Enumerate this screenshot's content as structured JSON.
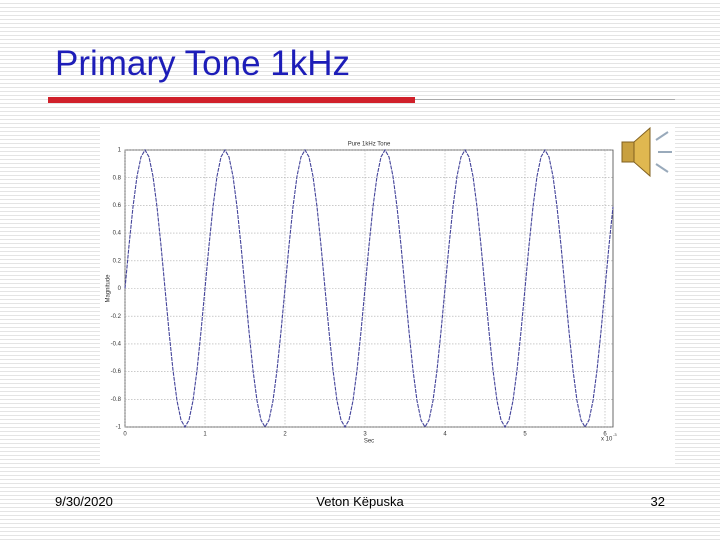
{
  "slide": {
    "title": "Primary Tone 1kHz",
    "footer": {
      "date": "9/30/2020",
      "author": "Veton Këpuska",
      "page": "32"
    }
  },
  "chart_data": {
    "type": "line",
    "title": "Pure 1kHz Tone",
    "xlabel": "Sec",
    "ylabel": "Magnitude",
    "x_scale_label": "x 10",
    "x_scale_exponent": "-3",
    "x": [
      0,
      0.05,
      0.1,
      0.15,
      0.2,
      0.25,
      0.3,
      0.35,
      0.4,
      0.45,
      0.5,
      0.55,
      0.6,
      0.65,
      0.7,
      0.75,
      0.8,
      0.85,
      0.9,
      0.95,
      1,
      1.05,
      1.1,
      1.15,
      1.2,
      1.25,
      1.3,
      1.35,
      1.4,
      1.45,
      1.5,
      1.55,
      1.6,
      1.65,
      1.7,
      1.75,
      1.8,
      1.85,
      1.9,
      1.95,
      2,
      2.05,
      2.1,
      2.15,
      2.2,
      2.25,
      2.3,
      2.35,
      2.4,
      2.45,
      2.5,
      2.55,
      2.6,
      2.65,
      2.7,
      2.75,
      2.8,
      2.85,
      2.9,
      2.95,
      3,
      3.05,
      3.1,
      3.15,
      3.2,
      3.25,
      3.3,
      3.35,
      3.4,
      3.45,
      3.5,
      3.55,
      3.6,
      3.65,
      3.7,
      3.75,
      3.8,
      3.85,
      3.9,
      3.95,
      4,
      4.05,
      4.1,
      4.15,
      4.2,
      4.25,
      4.3,
      4.35,
      4.4,
      4.45,
      4.5,
      4.55,
      4.6,
      4.65,
      4.7,
      4.75,
      4.8,
      4.85,
      4.9,
      4.95,
      5,
      5.05,
      5.1,
      5.15,
      5.2,
      5.25,
      5.3,
      5.35,
      5.4,
      5.45,
      5.5,
      5.55,
      5.6,
      5.65,
      5.7,
      5.75,
      5.8,
      5.85,
      5.9,
      5.95,
      6,
      6.05,
      6.1
    ],
    "series": [
      {
        "color": "#44449a",
        "values": [
          0,
          0.31,
          0.59,
          0.81,
          0.95,
          1,
          0.95,
          0.81,
          0.59,
          0.31,
          0,
          -0.31,
          -0.59,
          -0.81,
          -0.95,
          -1,
          -0.95,
          -0.81,
          -0.59,
          -0.31,
          0,
          0.31,
          0.59,
          0.81,
          0.95,
          1,
          0.95,
          0.81,
          0.59,
          0.31,
          0,
          -0.31,
          -0.59,
          -0.81,
          -0.95,
          -1,
          -0.95,
          -0.81,
          -0.59,
          -0.31,
          0,
          0.31,
          0.59,
          0.81,
          0.95,
          1,
          0.95,
          0.81,
          0.59,
          0.31,
          0,
          -0.31,
          -0.59,
          -0.81,
          -0.95,
          -1,
          -0.95,
          -0.81,
          -0.59,
          -0.31,
          0,
          0.31,
          0.59,
          0.81,
          0.95,
          1,
          0.95,
          0.81,
          0.59,
          0.31,
          0,
          -0.31,
          -0.59,
          -0.81,
          -0.95,
          -1,
          -0.95,
          -0.81,
          -0.59,
          -0.31,
          0,
          0.31,
          0.59,
          0.81,
          0.95,
          1,
          0.95,
          0.81,
          0.59,
          0.31,
          0,
          -0.31,
          -0.59,
          -0.81,
          -0.95,
          -1,
          -0.95,
          -0.81,
          -0.59,
          -0.31,
          0,
          0.31,
          0.59,
          0.81,
          0.95,
          1,
          0.95,
          0.81,
          0.59,
          0.31,
          0,
          -0.31,
          -0.59,
          -0.81,
          -0.95,
          -1,
          -0.95,
          -0.81,
          -0.59,
          -0.31,
          0,
          0.31,
          0.59
        ]
      }
    ],
    "xlim": [
      0,
      6.1
    ],
    "ylim": [
      -1,
      1
    ],
    "xticks": [
      0,
      1,
      2,
      3,
      4,
      5,
      6
    ],
    "yticks": [
      -1,
      -0.8,
      -0.6,
      -0.4,
      -0.2,
      0,
      0.2,
      0.4,
      0.6,
      0.8,
      1
    ],
    "grid": true
  }
}
